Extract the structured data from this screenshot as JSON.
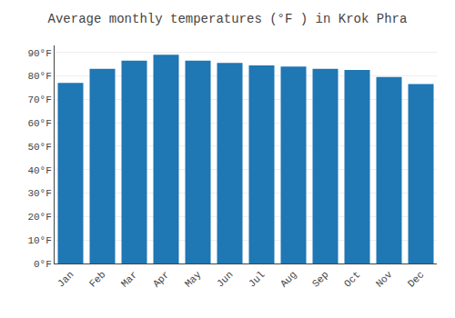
{
  "chart_data": {
    "type": "bar",
    "title": "Average monthly temperatures (°F ) in Krok Phra",
    "categories": [
      "Jan",
      "Feb",
      "Mar",
      "Apr",
      "May",
      "Jun",
      "Jul",
      "Aug",
      "Sep",
      "Oct",
      "Nov",
      "Dec"
    ],
    "values": [
      77,
      83,
      86.5,
      89,
      86.5,
      85.5,
      84.5,
      84,
      83,
      82.5,
      79.5,
      76.5
    ],
    "ylim": [
      0,
      93
    ],
    "yticks": [
      {
        "value": 0,
        "label": "0°F"
      },
      {
        "value": 10,
        "label": "10°F"
      },
      {
        "value": 20,
        "label": "20°F"
      },
      {
        "value": 30,
        "label": "30°F"
      },
      {
        "value": 40,
        "label": "40°F"
      },
      {
        "value": 50,
        "label": "50°F"
      },
      {
        "value": 60,
        "label": "60°F"
      },
      {
        "value": 70,
        "label": "70°F"
      },
      {
        "value": 80,
        "label": "80°F"
      },
      {
        "value": 90,
        "label": "90°F"
      }
    ],
    "grid": true
  }
}
